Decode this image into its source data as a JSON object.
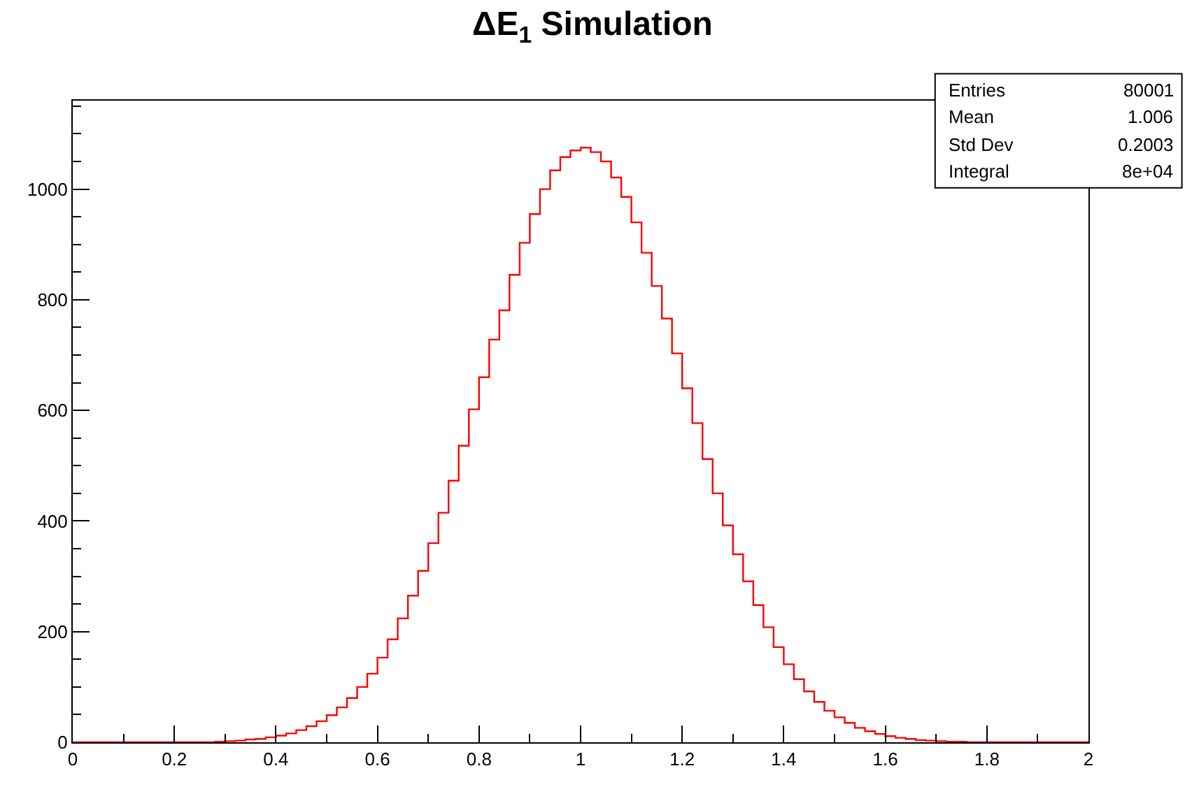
{
  "chart_data": {
    "type": "histogram",
    "title": "ΔE$_{1}$ Simulation",
    "color": "#ff0000",
    "bins": [
      0,
      0.02,
      0.04,
      0.06,
      0.08,
      0.1,
      0.12,
      0.14,
      0.16,
      0.18,
      0.2,
      0.22,
      0.24,
      0.26,
      0.28,
      0.3,
      0.32,
      0.34,
      0.36,
      0.38,
      0.4,
      0.42,
      0.44,
      0.46,
      0.48,
      0.5,
      0.52,
      0.54,
      0.56,
      0.58,
      0.6,
      0.62,
      0.64,
      0.66,
      0.68,
      0.7,
      0.72,
      0.74,
      0.76,
      0.78,
      0.8,
      0.82,
      0.84,
      0.86,
      0.88,
      0.9,
      0.92,
      0.94,
      0.96,
      0.98,
      1,
      1.02,
      1.04,
      1.06,
      1.08,
      1.1,
      1.12,
      1.14,
      1.16,
      1.18,
      1.2,
      1.22,
      1.24,
      1.26,
      1.28,
      1.3,
      1.32,
      1.34,
      1.36,
      1.38,
      1.4,
      1.42,
      1.44,
      1.46,
      1.48,
      1.5,
      1.52,
      1.54,
      1.56,
      1.58,
      1.6,
      1.62,
      1.64,
      1.66,
      1.68,
      1.7,
      1.72,
      1.74,
      1.76,
      1.78,
      1.8,
      1.82,
      1.84,
      1.86,
      1.88,
      1.9,
      1.92,
      1.94,
      1.96,
      1.98,
      2
    ],
    "values": [
      0,
      0,
      0,
      0,
      0,
      0,
      0,
      0,
      0,
      0,
      0,
      0,
      0,
      0,
      1,
      2,
      3,
      5,
      6,
      9,
      12,
      16,
      22,
      29,
      38,
      49,
      63,
      80,
      100,
      124,
      153,
      186,
      224,
      265,
      310,
      360,
      415,
      473,
      536,
      602,
      660,
      728,
      781,
      845,
      903,
      955,
      1000,
      1034,
      1058,
      1070,
      1075,
      1067,
      1050,
      1021,
      986,
      940,
      885,
      825,
      766,
      703,
      640,
      577,
      512,
      450,
      392,
      340,
      291,
      248,
      208,
      172,
      141,
      114,
      92,
      73,
      57,
      45,
      35,
      26,
      20,
      15,
      11,
      8,
      6,
      4,
      3,
      2,
      1,
      1,
      0,
      0,
      0,
      0,
      0,
      0,
      0,
      0,
      0,
      0,
      0,
      0
    ],
    "xlim": [
      0,
      2
    ],
    "xticks": [
      0,
      0.2,
      0.4,
      0.6,
      0.8,
      1,
      1.2,
      1.4,
      1.6,
      1.8,
      2
    ],
    "ylim": [
      0,
      1160
    ],
    "yticks": [
      0,
      200,
      400,
      600,
      800,
      1000
    ],
    "annotations": [
      "Entries",
      "80001",
      "Mean",
      "1.006",
      "Std Dev",
      "0.2003",
      "Integral",
      "8e+04"
    ]
  }
}
